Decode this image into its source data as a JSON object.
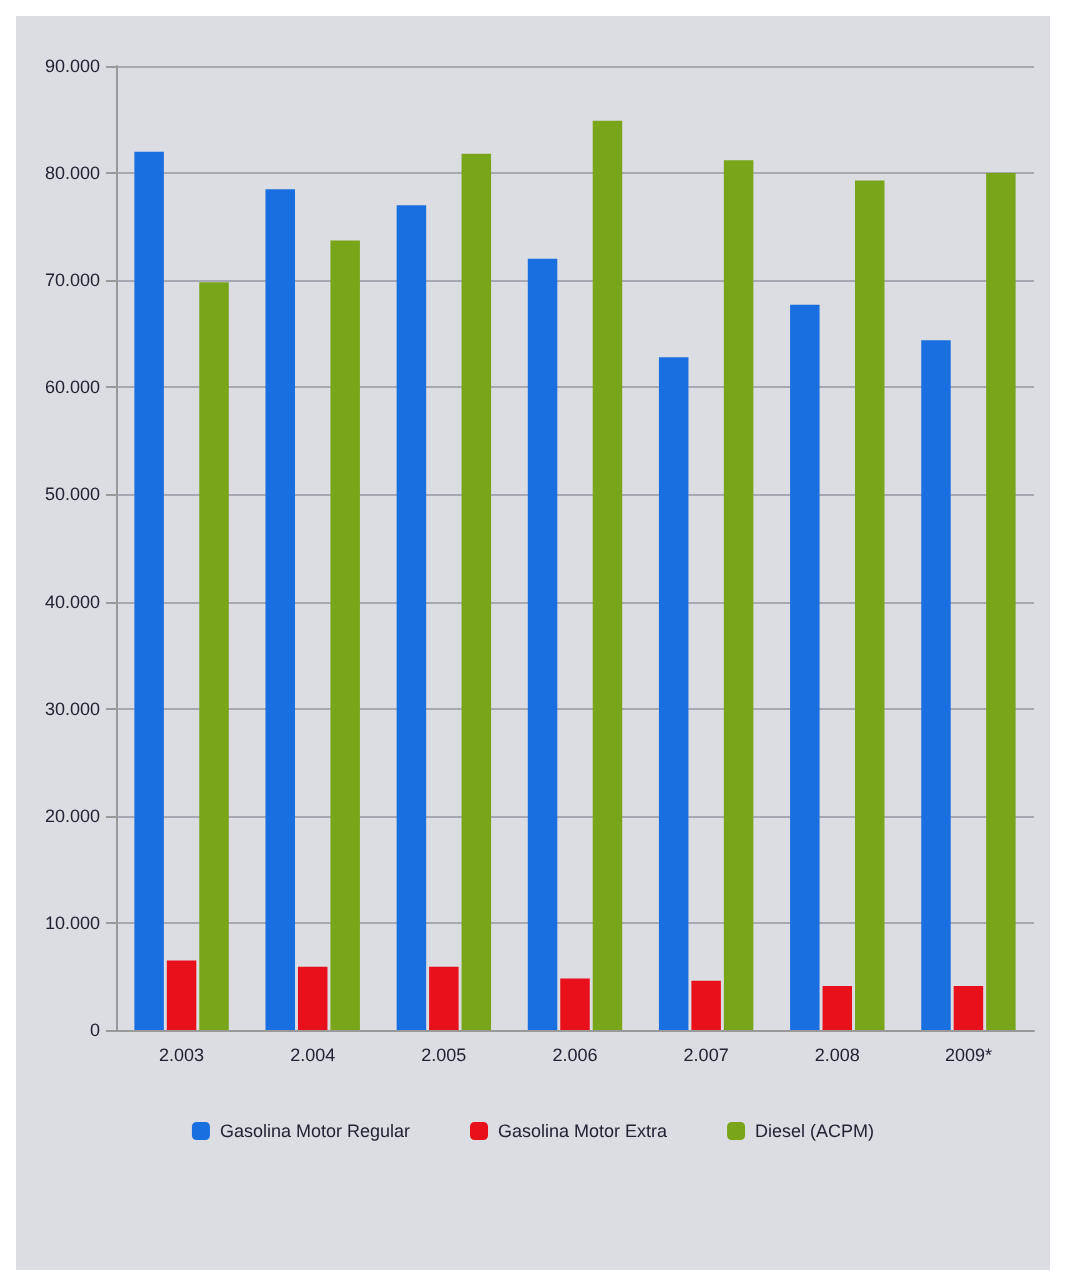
{
  "chart_data": {
    "type": "bar",
    "categories": [
      "2.003",
      "2.004",
      "2.005",
      "2.006",
      "2.007",
      "2.008",
      "2009*"
    ],
    "series": [
      {
        "name": "Gasolina Motor Regular",
        "color": "#1a6fe0",
        "values": [
          82000,
          78500,
          77000,
          72000,
          62800,
          67700,
          64400
        ]
      },
      {
        "name": "Gasolina Motor Extra",
        "color": "#e8101a",
        "values": [
          6500,
          5900,
          5900,
          4800,
          4600,
          4100,
          4100
        ]
      },
      {
        "name": "Diesel (ACPM)",
        "color": "#78a51a",
        "values": [
          69800,
          73700,
          81800,
          84900,
          81200,
          79300,
          80000
        ]
      }
    ],
    "ylim": [
      0,
      90000
    ],
    "yticks": [
      0,
      {
        "value": 10000,
        "label": "10.000"
      },
      {
        "value": 20000,
        "label": "20.000"
      },
      {
        "value": 30000,
        "label": "30.000"
      },
      {
        "value": 40000,
        "label": "40.000"
      },
      {
        "value": 50000,
        "label": "50.000"
      },
      {
        "value": 60000,
        "label": "60.000"
      },
      {
        "value": 70000,
        "label": "70.000"
      },
      {
        "value": 80000,
        "label": "80.000"
      },
      {
        "value": 90000,
        "label": "90.000"
      }
    ],
    "grid": "y",
    "legend": "bottom"
  }
}
